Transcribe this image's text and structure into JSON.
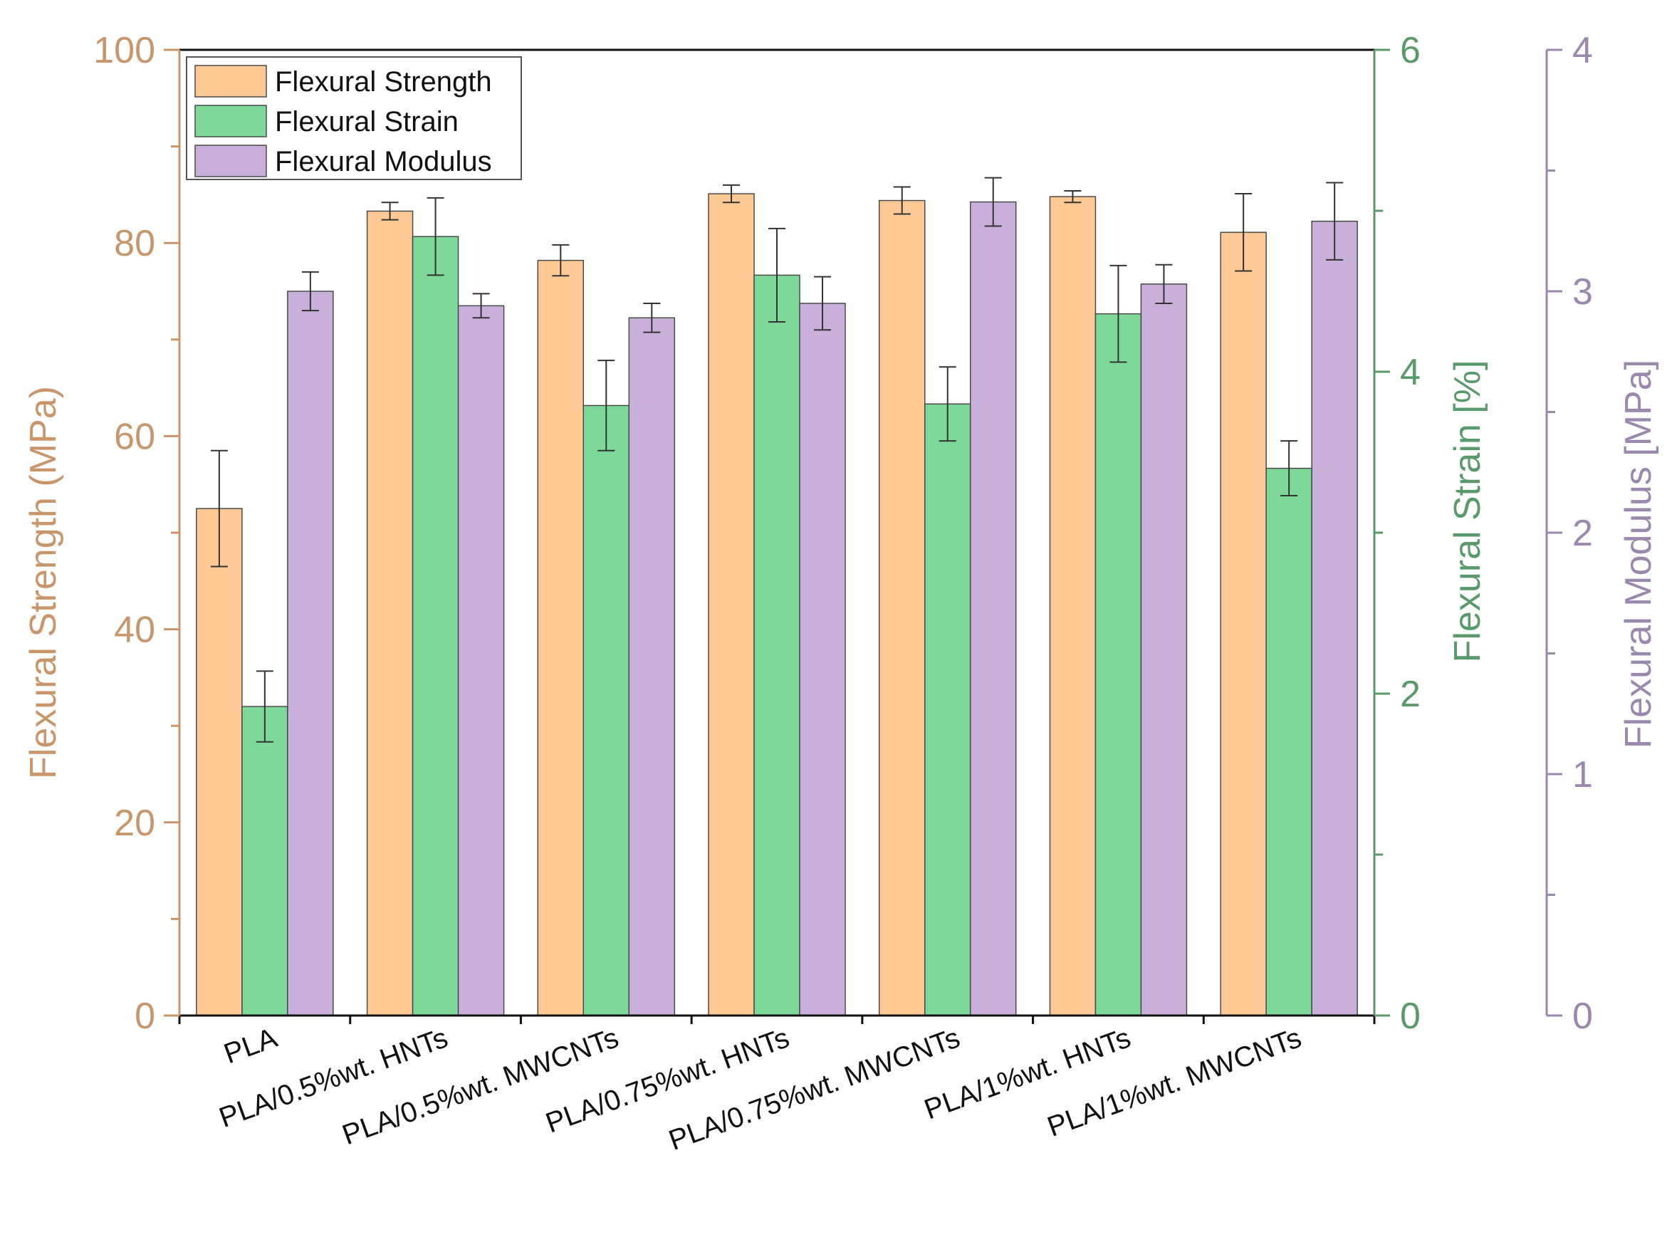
{
  "chart_data": {
    "type": "bar",
    "categories": [
      "PLA",
      "PLA/0.5%wt. HNTs",
      "PLA/0.5%wt. MWCNTs",
      "PLA/0.75%wt. HNTs",
      "PLA/0.75%wt. MWCNTs",
      "PLA/1%wt. HNTs",
      "PLA/1%wt. MWCNTs"
    ],
    "series": [
      {
        "name": "Flexural Strength",
        "axis": "left",
        "color": "#FFC996",
        "values": [
          52.5,
          83.3,
          78.2,
          85.1,
          84.4,
          84.8,
          81.1
        ],
        "errors": [
          6.0,
          0.9,
          1.6,
          0.9,
          1.4,
          0.6,
          4.0
        ]
      },
      {
        "name": "Flexural Strain",
        "axis": "right1",
        "color": "#7DD89A",
        "values": [
          1.92,
          4.84,
          3.79,
          4.6,
          3.8,
          4.36,
          3.4
        ],
        "errors": [
          0.22,
          0.24,
          0.28,
          0.29,
          0.23,
          0.3,
          0.17
        ]
      },
      {
        "name": "Flexural Modulus",
        "axis": "right2",
        "color": "#C8B0DA",
        "values": [
          3.0,
          2.94,
          2.89,
          2.95,
          3.37,
          3.03,
          3.29
        ],
        "errors": [
          0.08,
          0.05,
          0.06,
          0.11,
          0.1,
          0.08,
          0.16
        ]
      }
    ],
    "axes": {
      "left": {
        "label": "Flexural Strength (MPa)",
        "range": [
          0,
          100
        ],
        "ticks": [
          0,
          20,
          40,
          60,
          80,
          100
        ],
        "color": "#C8966A"
      },
      "right1": {
        "label": "Flexural Strain [%]",
        "range": [
          0,
          6
        ],
        "ticks": [
          0,
          2,
          4,
          6
        ],
        "color": "#5A9A6A"
      },
      "right2": {
        "label": "Flexural Modulus [MPa]",
        "range": [
          0,
          4
        ],
        "ticks": [
          0,
          1,
          2,
          3,
          4
        ],
        "color": "#9A88AE"
      }
    },
    "legend": {
      "position": "top-left"
    }
  }
}
